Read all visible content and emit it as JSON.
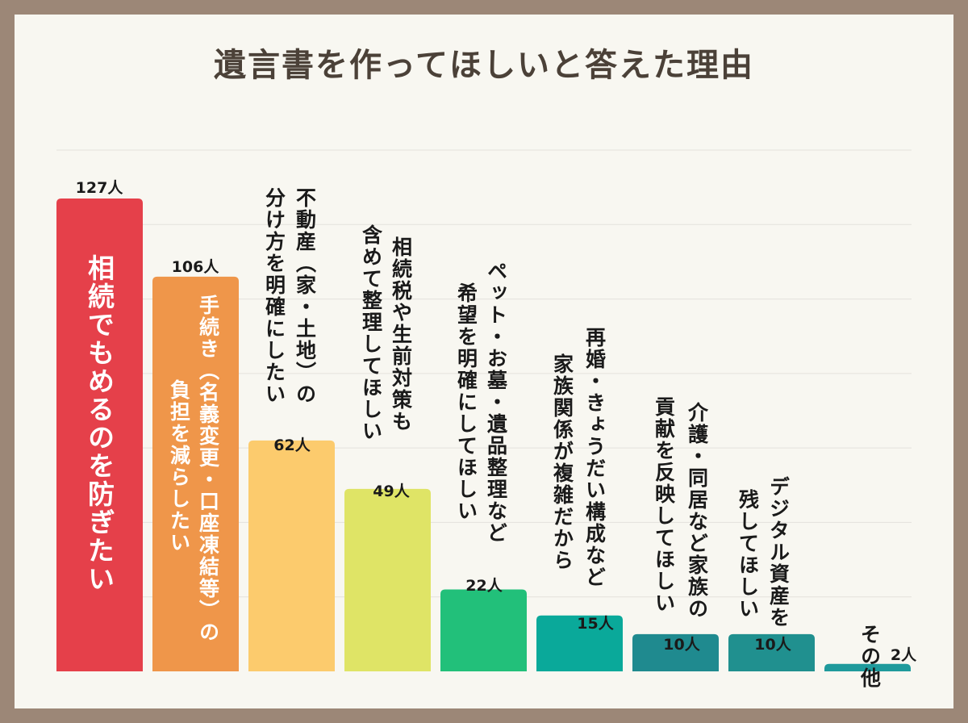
{
  "chart_data": {
    "type": "bar",
    "title": "遺言書を作ってほしいと答えた理由",
    "categories": [
      [
        "相続でもめるのを防ぎたい"
      ],
      [
        "手続き（名義変更・口座凍結等）の",
        "負担を減らしたい"
      ],
      [
        "不動産（家・土地）の",
        "分け方を明確にしたい"
      ],
      [
        "相続税や生前対策も",
        "含めて整理してほしい"
      ],
      [
        "ペット・お墓・遺品整理など",
        "希望を明確にしてほしい"
      ],
      [
        "再婚・きょうだい構成など",
        "家族関係が複雑だから"
      ],
      [
        "介護・同居など家族の",
        "貢献を反映してほしい"
      ],
      [
        "デジタル資産を",
        "残してほしい"
      ],
      [
        "その他"
      ]
    ],
    "values": [
      127,
      106,
      62,
      49,
      22,
      15,
      10,
      10,
      2
    ],
    "value_labels": [
      "127人",
      "106人",
      "62人",
      "49人",
      "22人",
      "15人",
      "10人",
      "10人",
      "2人"
    ],
    "colors": [
      "#e5404a",
      "#ef964a",
      "#fccb6d",
      "#dfe466",
      "#22c07a",
      "#0aa99a",
      "#1f8a8f",
      "#20908f",
      "#1f9a9c"
    ],
    "ylim": [
      0,
      140
    ],
    "grid": true,
    "xlabel": "",
    "ylabel": ""
  }
}
